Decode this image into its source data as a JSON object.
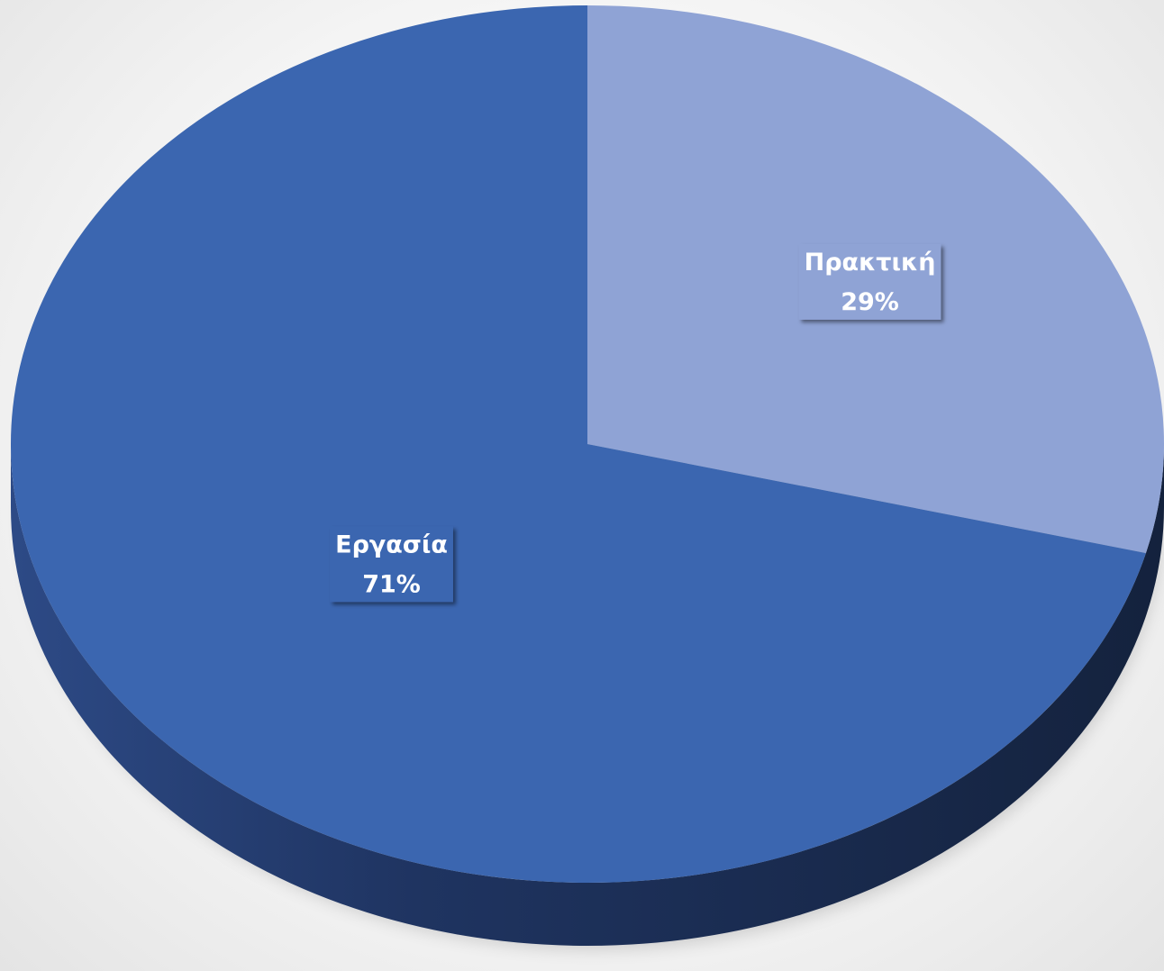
{
  "chart_data": {
    "type": "pie",
    "style": "3d",
    "title": "",
    "slices": [
      {
        "label": "Πρακτική",
        "value": 29,
        "display": "29%",
        "color": "#8fa3d5",
        "side_color": "#5d6f9f"
      },
      {
        "label": "Εργασία",
        "value": 71,
        "display": "71%",
        "color": "#3b66b0",
        "side_color": "#1b2b4d"
      }
    ],
    "start_angle_deg": 0,
    "direction": "clockwise",
    "legend": "none",
    "data_labels": "inside, category and percentage"
  }
}
